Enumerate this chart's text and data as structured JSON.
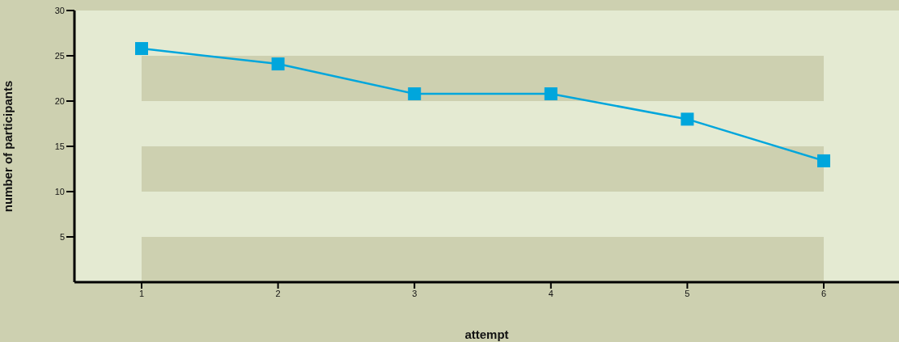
{
  "chart_data": {
    "type": "line",
    "xlabel": "attempt",
    "ylabel": "number of participants",
    "categories": [
      "1",
      "2",
      "3",
      "4",
      "5",
      "6"
    ],
    "series": [
      {
        "color": "#00a6dc",
        "values": [
          25.8,
          24.1,
          20.8,
          20.8,
          18,
          13.4
        ]
      }
    ],
    "ylim": [
      0,
      30
    ],
    "yticks": [
      5,
      10,
      15,
      20,
      25,
      30
    ],
    "bands": [
      {
        "axis": "y",
        "from": 0,
        "to": 5,
        "color": "#cdd0b0"
      },
      {
        "axis": "y",
        "from": 10,
        "to": 15,
        "color": "#cdd0b0"
      },
      {
        "axis": "y",
        "from": 20,
        "to": 25,
        "color": "#cdd0b0"
      }
    ],
    "marker": "square",
    "line_style": "solid",
    "legend": false
  }
}
